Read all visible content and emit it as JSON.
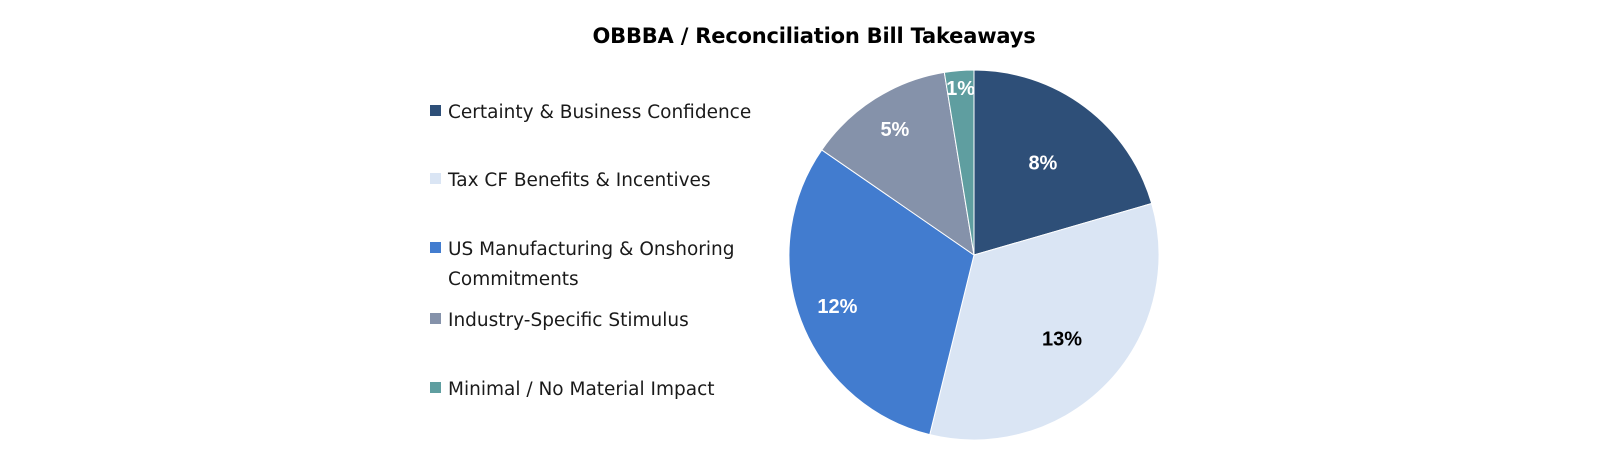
{
  "chart_data": {
    "type": "pie",
    "title": "OBBBA / Reconciliation Bill Takeaways",
    "categories": [
      "Certainty & Business Confidence",
      "Tax CF Benefits & Incentives",
      "US Manufacturing & Onshoring Commitments",
      "Industry-Specific Stimulus",
      "Minimal / No Material Impact"
    ],
    "values": [
      8,
      13,
      12,
      5,
      1
    ],
    "value_labels": [
      "8%",
      "13%",
      "12%",
      "5%",
      "1%"
    ],
    "colors": [
      "#2E4F78",
      "#DAE5F4",
      "#427CCF",
      "#8592AA",
      "#5F9EA0"
    ],
    "label_colors": [
      "#ffffff",
      "#000000",
      "#ffffff",
      "#ffffff",
      "#ffffff"
    ],
    "start_angle_deg": 0,
    "direction": "clockwise",
    "legend_position": "left"
  }
}
